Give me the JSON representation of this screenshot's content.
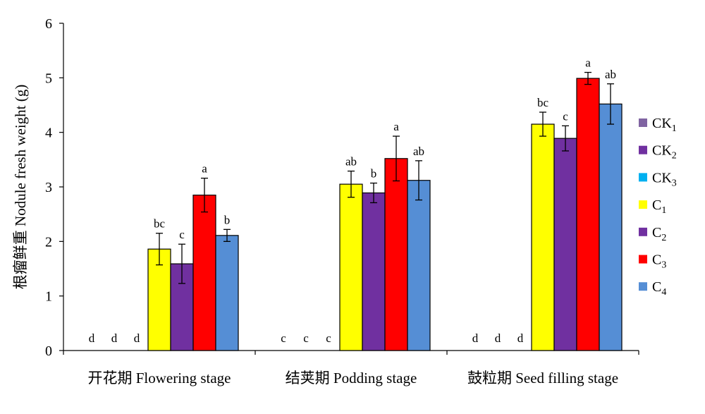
{
  "chart_data": {
    "type": "bar",
    "ylabel": "根瘤鲜重 Nodule fresh weight (g)",
    "ylim": [
      0,
      6
    ],
    "yticks": [
      0,
      1,
      2,
      3,
      4,
      5,
      6
    ],
    "grid": false,
    "legend_position": "right",
    "categories": [
      "开花期 Flowering stage",
      "结荚期 Podding stage",
      "鼓粒期 Seed filling stage"
    ],
    "series": [
      {
        "name": "CK",
        "sub": "1",
        "color": "#8064A2",
        "values": [
          0,
          0,
          0
        ],
        "errors": [
          0,
          0,
          0
        ],
        "letters": [
          "d",
          "c",
          "d"
        ]
      },
      {
        "name": "CK",
        "sub": "2",
        "color": "#7030A0",
        "values": [
          0,
          0,
          0
        ],
        "errors": [
          0,
          0,
          0
        ],
        "letters": [
          "d",
          "c",
          "d"
        ]
      },
      {
        "name": "CK",
        "sub": "3",
        "color": "#00B0F0",
        "values": [
          0,
          0,
          0
        ],
        "errors": [
          0,
          0,
          0
        ],
        "letters": [
          "d",
          "c",
          "d"
        ]
      },
      {
        "name": "C",
        "sub": "1",
        "color": "#FFFF00",
        "values": [
          1.86,
          3.05,
          4.15
        ],
        "errors": [
          0.29,
          0.24,
          0.22
        ],
        "letters": [
          "bc",
          "ab",
          "bc"
        ]
      },
      {
        "name": "C",
        "sub": "2",
        "color": "#7030A0",
        "values": [
          1.59,
          2.89,
          3.89
        ],
        "errors": [
          0.36,
          0.18,
          0.23
        ],
        "letters": [
          "c",
          "b",
          "c"
        ]
      },
      {
        "name": "C",
        "sub": "3",
        "color": "#FF0000",
        "values": [
          2.85,
          3.52,
          4.99
        ],
        "errors": [
          0.31,
          0.41,
          0.11
        ],
        "letters": [
          "a",
          "a",
          "a"
        ]
      },
      {
        "name": "C",
        "sub": "4",
        "color": "#558ED5",
        "values": [
          2.11,
          3.12,
          4.52
        ],
        "errors": [
          0.11,
          0.36,
          0.37
        ],
        "letters": [
          "b",
          "ab",
          "ab"
        ]
      }
    ]
  }
}
